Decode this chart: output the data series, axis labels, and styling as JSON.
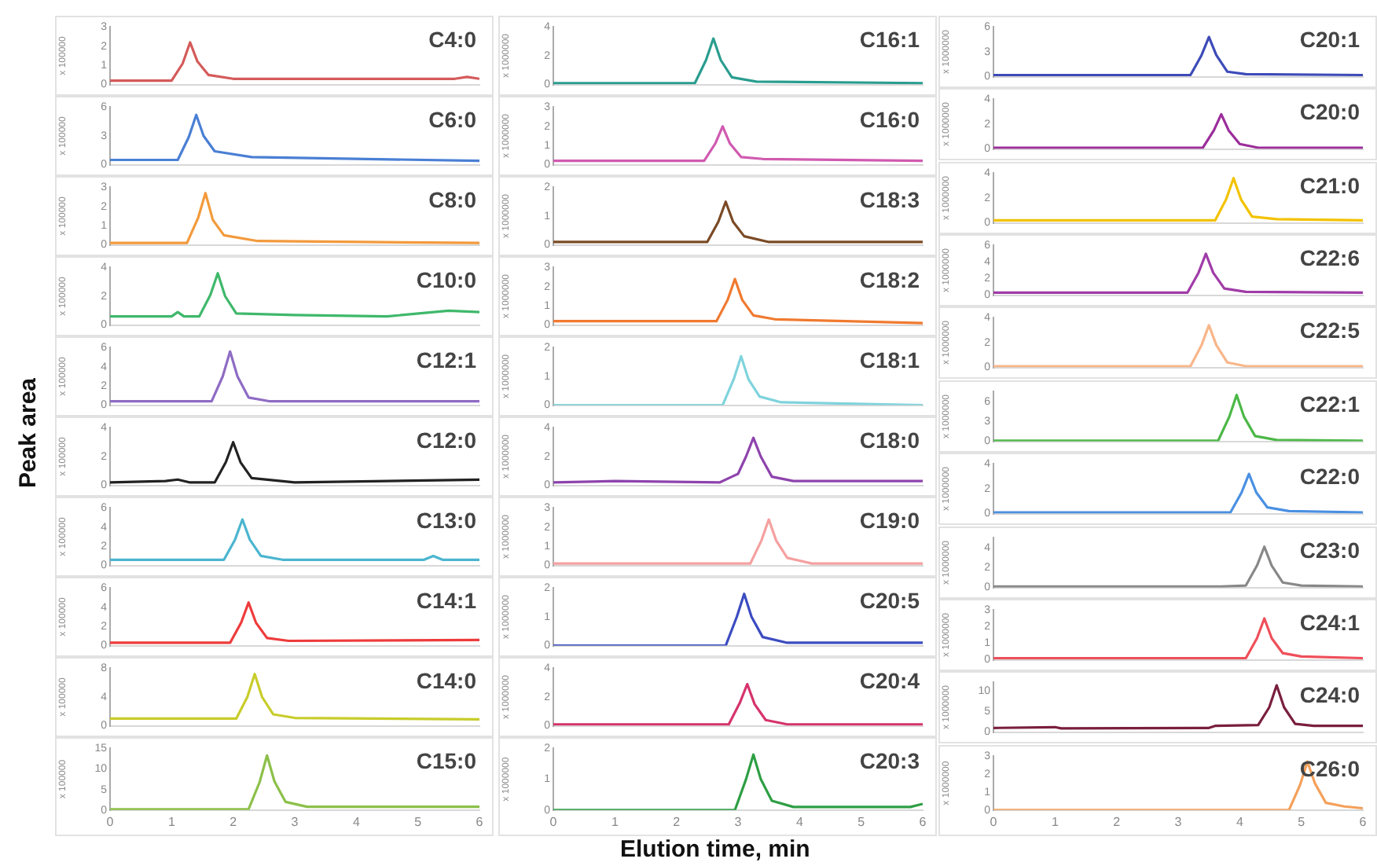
{
  "chart_data": [
    {
      "type": "line",
      "title": "C4:0",
      "ylabel": "x 100000",
      "x": [
        0,
        1.0,
        1.18,
        1.3,
        1.42,
        1.6,
        2.0,
        5.6,
        5.8,
        6
      ],
      "series": [
        {
          "color": "#d45a5a",
          "values": [
            0.2,
            0.2,
            1.1,
            2.2,
            1.2,
            0.5,
            0.3,
            0.3,
            0.4,
            0.3
          ]
        }
      ],
      "xlim": [
        0,
        6
      ],
      "xticks": [
        0,
        1,
        2,
        3,
        4,
        5,
        6
      ],
      "ylim": [
        0,
        3
      ],
      "yticks": [
        0,
        1,
        2,
        3
      ],
      "tick_labels": "y",
      "marker": "none"
    },
    {
      "type": "line",
      "title": "C6:0",
      "ylabel": "x 100000",
      "x": [
        0,
        1.1,
        1.28,
        1.4,
        1.52,
        1.7,
        2.3,
        6
      ],
      "series": [
        {
          "color": "#4a7fd4",
          "values": [
            0.5,
            0.5,
            2.9,
            5.2,
            3.0,
            1.4,
            0.8,
            0.4
          ]
        }
      ],
      "xlim": [
        0,
        6
      ],
      "xticks": [
        0,
        1,
        2,
        3,
        4,
        5,
        6
      ],
      "ylim": [
        0,
        6
      ],
      "yticks": [
        0,
        3,
        6
      ],
      "tick_labels": "y",
      "marker": "none"
    },
    {
      "type": "line",
      "title": "C8:0",
      "ylabel": "x 100000",
      "x": [
        0,
        1.25,
        1.43,
        1.55,
        1.67,
        1.85,
        2.4,
        6
      ],
      "series": [
        {
          "color": "#f39a3c",
          "values": [
            0.1,
            0.1,
            1.4,
            2.7,
            1.3,
            0.5,
            0.2,
            0.1
          ]
        }
      ],
      "xlim": [
        0,
        6
      ],
      "xticks": [
        0,
        1,
        2,
        3,
        4,
        5,
        6
      ],
      "ylim": [
        0,
        3
      ],
      "yticks": [
        0,
        1,
        2,
        3
      ],
      "tick_labels": "y",
      "marker": "none"
    },
    {
      "type": "line",
      "title": "C10:0",
      "ylabel": "x 100000",
      "x": [
        0,
        1.0,
        1.1,
        1.2,
        1.45,
        1.63,
        1.75,
        1.87,
        2.05,
        3.0,
        4.5,
        5.5,
        6
      ],
      "series": [
        {
          "color": "#3fb86b",
          "values": [
            0.6,
            0.6,
            0.9,
            0.6,
            0.6,
            2.1,
            3.6,
            2.0,
            0.8,
            0.7,
            0.6,
            1.0,
            0.9
          ]
        }
      ],
      "xlim": [
        0,
        6
      ],
      "xticks": [
        0,
        1,
        2,
        3,
        4,
        5,
        6
      ],
      "ylim": [
        0,
        4
      ],
      "yticks": [
        0,
        2,
        4
      ],
      "tick_labels": "y",
      "marker": "none"
    },
    {
      "type": "line",
      "title": "C12:1",
      "ylabel": "x 100000",
      "x": [
        0,
        1.65,
        1.83,
        1.95,
        2.07,
        2.25,
        2.6,
        6
      ],
      "series": [
        {
          "color": "#8e6cc4",
          "values": [
            0.4,
            0.4,
            3.0,
            5.6,
            3.0,
            0.8,
            0.4,
            0.4
          ]
        }
      ],
      "xlim": [
        0,
        6
      ],
      "xticks": [
        0,
        1,
        2,
        3,
        4,
        5,
        6
      ],
      "ylim": [
        0,
        6
      ],
      "yticks": [
        0,
        2,
        4,
        6
      ],
      "tick_labels": "y",
      "marker": "none"
    },
    {
      "type": "line",
      "title": "C12:0",
      "ylabel": "x 100000",
      "x": [
        0,
        0.9,
        1.1,
        1.3,
        1.7,
        1.88,
        2.0,
        2.12,
        2.3,
        3.0,
        6
      ],
      "series": [
        {
          "color": "#222222",
          "values": [
            0.2,
            0.3,
            0.4,
            0.2,
            0.2,
            1.6,
            3.0,
            1.6,
            0.5,
            0.2,
            0.4
          ]
        }
      ],
      "xlim": [
        0,
        6
      ],
      "xticks": [
        0,
        1,
        2,
        3,
        4,
        5,
        6
      ],
      "ylim": [
        0,
        4
      ],
      "yticks": [
        0,
        2,
        4
      ],
      "tick_labels": "y",
      "marker": "none"
    },
    {
      "type": "line",
      "title": "C13:0",
      "ylabel": "x 100000",
      "x": [
        0,
        1.85,
        2.03,
        2.15,
        2.27,
        2.45,
        2.8,
        5.1,
        5.25,
        5.4,
        6
      ],
      "series": [
        {
          "color": "#4bb5cf",
          "values": [
            0.6,
            0.6,
            2.7,
            4.8,
            2.7,
            1.0,
            0.6,
            0.6,
            1.0,
            0.6,
            0.6
          ]
        }
      ],
      "xlim": [
        0,
        6
      ],
      "xticks": [
        0,
        1,
        2,
        3,
        4,
        5,
        6
      ],
      "ylim": [
        0,
        6
      ],
      "yticks": [
        0,
        2,
        4,
        6
      ],
      "tick_labels": "y",
      "marker": "none"
    },
    {
      "type": "line",
      "title": "C14:1",
      "ylabel": "x 100000",
      "x": [
        0,
        1.95,
        2.13,
        2.25,
        2.37,
        2.55,
        2.9,
        6
      ],
      "series": [
        {
          "color": "#ee3b3b",
          "values": [
            0.3,
            0.3,
            2.4,
            4.5,
            2.4,
            0.8,
            0.5,
            0.6
          ]
        }
      ],
      "xlim": [
        0,
        6
      ],
      "xticks": [
        0,
        1,
        2,
        3,
        4,
        5,
        6
      ],
      "ylim": [
        0,
        6
      ],
      "yticks": [
        0,
        2,
        4,
        6
      ],
      "tick_labels": "y",
      "marker": "none"
    },
    {
      "type": "line",
      "title": "C14:0",
      "ylabel": "x 100000",
      "x": [
        0,
        2.05,
        2.23,
        2.35,
        2.47,
        2.65,
        3.0,
        6
      ],
      "series": [
        {
          "color": "#c8cc2a",
          "values": [
            1.0,
            1.0,
            4.0,
            7.2,
            4.0,
            1.6,
            1.1,
            0.9
          ]
        }
      ],
      "xlim": [
        0,
        6
      ],
      "xticks": [
        0,
        1,
        2,
        3,
        4,
        5,
        6
      ],
      "ylim": [
        0,
        8
      ],
      "yticks": [
        0,
        4,
        8
      ],
      "tick_labels": "y",
      "marker": "none"
    },
    {
      "type": "line",
      "title": "C15:0",
      "ylabel": "x 100000",
      "x": [
        0,
        2.25,
        2.43,
        2.55,
        2.67,
        2.85,
        3.2,
        6
      ],
      "series": [
        {
          "color": "#8cc04a",
          "values": [
            0.2,
            0.2,
            6.8,
            13.3,
            7.0,
            2.0,
            0.8,
            0.8
          ]
        }
      ],
      "xlim": [
        0,
        6
      ],
      "xticks": [
        0,
        1,
        2,
        3,
        4,
        5,
        6
      ],
      "ylim": [
        0,
        15
      ],
      "yticks": [
        0,
        5,
        10,
        15
      ],
      "marker": "none"
    },
    {
      "type": "line",
      "title": "C16:1",
      "ylabel": "x 1000000",
      "x": [
        0,
        2.3,
        2.48,
        2.6,
        2.72,
        2.9,
        3.3,
        6
      ],
      "series": [
        {
          "color": "#2a9d8f",
          "values": [
            0.1,
            0.1,
            1.7,
            3.2,
            1.7,
            0.5,
            0.2,
            0.1
          ]
        }
      ],
      "xlim": [
        0,
        6
      ],
      "xticks": [
        0,
        1,
        2,
        3,
        4,
        5,
        6
      ],
      "ylim": [
        0,
        4
      ],
      "yticks": [
        0,
        2,
        4
      ],
      "tick_labels": "y",
      "marker": "none"
    },
    {
      "type": "line",
      "title": "C16:0",
      "ylabel": "x 1000000",
      "x": [
        0,
        2.45,
        2.63,
        2.75,
        2.87,
        3.05,
        3.4,
        6
      ],
      "series": [
        {
          "color": "#d05ab0",
          "values": [
            0.2,
            0.2,
            1.1,
            2.0,
            1.1,
            0.4,
            0.3,
            0.2
          ]
        }
      ],
      "xlim": [
        0,
        6
      ],
      "xticks": [
        0,
        1,
        2,
        3,
        4,
        5,
        6
      ],
      "ylim": [
        0,
        3
      ],
      "yticks": [
        0,
        1,
        2,
        3
      ],
      "tick_labels": "y",
      "marker": "none"
    },
    {
      "type": "line",
      "title": "C18:3",
      "ylabel": "x 1000000",
      "x": [
        0,
        2.5,
        2.68,
        2.8,
        2.92,
        3.1,
        3.5,
        6
      ],
      "series": [
        {
          "color": "#7a4a25",
          "values": [
            0.1,
            0.1,
            0.8,
            1.5,
            0.8,
            0.3,
            0.1,
            0.1
          ]
        }
      ],
      "xlim": [
        0,
        6
      ],
      "xticks": [
        0,
        1,
        2,
        3,
        4,
        5,
        6
      ],
      "ylim": [
        0,
        2
      ],
      "yticks": [
        0,
        1,
        2
      ],
      "tick_labels": "y",
      "marker": "none"
    },
    {
      "type": "line",
      "title": "C18:2",
      "ylabel": "x 1000000",
      "x": [
        0,
        2.65,
        2.83,
        2.95,
        3.07,
        3.25,
        3.6,
        6
      ],
      "series": [
        {
          "color": "#f07a30",
          "values": [
            0.2,
            0.2,
            1.3,
            2.4,
            1.3,
            0.5,
            0.3,
            0.1
          ]
        }
      ],
      "xlim": [
        0,
        6
      ],
      "xticks": [
        0,
        1,
        2,
        3,
        4,
        5,
        6
      ],
      "ylim": [
        0,
        3
      ],
      "yticks": [
        0,
        1,
        2,
        3
      ],
      "tick_labels": "y",
      "marker": "none"
    },
    {
      "type": "line",
      "title": "C18:1",
      "ylabel": "x 1000000",
      "x": [
        0,
        2.75,
        2.93,
        3.05,
        3.17,
        3.35,
        3.7,
        6
      ],
      "series": [
        {
          "color": "#7fd3dc",
          "values": [
            0.0,
            0.0,
            0.9,
            1.7,
            0.9,
            0.3,
            0.1,
            0.0
          ]
        }
      ],
      "xlim": [
        0,
        6
      ],
      "xticks": [
        0,
        1,
        2,
        3,
        4,
        5,
        6
      ],
      "ylim": [
        0,
        2
      ],
      "yticks": [
        0,
        1,
        2
      ],
      "tick_labels": "y",
      "marker": "none"
    },
    {
      "type": "line",
      "title": "C18:0",
      "ylabel": "x 1000000",
      "x": [
        0,
        1.0,
        2.7,
        2.9,
        3.0,
        3.13,
        3.25,
        3.37,
        3.55,
        3.9,
        6
      ],
      "series": [
        {
          "color": "#8e44ad",
          "values": [
            0.2,
            0.3,
            0.2,
            0.6,
            0.8,
            2.0,
            3.3,
            2.0,
            0.6,
            0.3,
            0.3
          ]
        }
      ],
      "xlim": [
        0,
        6
      ],
      "xticks": [
        0,
        1,
        2,
        3,
        4,
        5,
        6
      ],
      "ylim": [
        0,
        4
      ],
      "yticks": [
        0,
        2,
        4
      ],
      "tick_labels": "y",
      "marker": "none"
    },
    {
      "type": "line",
      "title": "C19:0",
      "ylabel": "x 1000000",
      "x": [
        0,
        3.2,
        3.38,
        3.5,
        3.62,
        3.8,
        4.2,
        6
      ],
      "series": [
        {
          "color": "#f5a0a0",
          "values": [
            0.1,
            0.1,
            1.3,
            2.4,
            1.3,
            0.4,
            0.1,
            0.1
          ]
        }
      ],
      "xlim": [
        0,
        6
      ],
      "xticks": [
        0,
        1,
        2,
        3,
        4,
        5,
        6
      ],
      "ylim": [
        0,
        3
      ],
      "yticks": [
        0,
        1,
        2,
        3
      ],
      "tick_labels": "y",
      "marker": "none"
    },
    {
      "type": "line",
      "title": "C20:5",
      "ylabel": "x 1000000",
      "x": [
        0,
        2.8,
        2.98,
        3.1,
        3.22,
        3.4,
        3.8,
        6
      ],
      "series": [
        {
          "color": "#3b4cc0",
          "values": [
            0.0,
            0.0,
            1.0,
            1.8,
            1.0,
            0.3,
            0.1,
            0.1
          ]
        }
      ],
      "xlim": [
        0,
        6
      ],
      "xticks": [
        0,
        1,
        2,
        3,
        4,
        5,
        6
      ],
      "ylim": [
        0,
        2
      ],
      "yticks": [
        0,
        1,
        2
      ],
      "tick_labels": "y",
      "marker": "none"
    },
    {
      "type": "line",
      "title": "C20:4",
      "ylabel": "x 1000000",
      "x": [
        0,
        2.85,
        3.03,
        3.15,
        3.27,
        3.45,
        3.8,
        6
      ],
      "series": [
        {
          "color": "#d6336c",
          "values": [
            0.1,
            0.1,
            1.6,
            2.9,
            1.5,
            0.4,
            0.1,
            0.1
          ]
        }
      ],
      "xlim": [
        0,
        6
      ],
      "xticks": [
        0,
        1,
        2,
        3,
        4,
        5,
        6
      ],
      "ylim": [
        0,
        4
      ],
      "yticks": [
        0,
        2,
        4
      ],
      "tick_labels": "y",
      "marker": "none"
    },
    {
      "type": "line",
      "title": "C20:3",
      "ylabel": "x 1000000",
      "x": [
        0,
        2.95,
        3.13,
        3.25,
        3.37,
        3.55,
        3.9,
        5.8,
        6
      ],
      "series": [
        {
          "color": "#2e9e44",
          "values": [
            0.0,
            0.0,
            1.0,
            1.8,
            1.0,
            0.3,
            0.1,
            0.1,
            0.2
          ]
        }
      ],
      "xlim": [
        0,
        6
      ],
      "xticks": [
        0,
        1,
        2,
        3,
        4,
        5,
        6
      ],
      "ylim": [
        0,
        2
      ],
      "yticks": [
        0,
        1,
        2
      ],
      "marker": "none"
    },
    {
      "type": "line",
      "title": "C20:1",
      "ylabel": "x 1000000",
      "x": [
        0,
        3.2,
        3.38,
        3.5,
        3.62,
        3.8,
        4.1,
        6
      ],
      "series": [
        {
          "color": "#3d4bb8",
          "values": [
            0.2,
            0.2,
            2.6,
            4.8,
            2.6,
            0.6,
            0.3,
            0.2
          ]
        }
      ],
      "xlim": [
        0,
        6
      ],
      "xticks": [
        0,
        1,
        2,
        3,
        4,
        5,
        6
      ],
      "ylim": [
        0,
        6
      ],
      "yticks": [
        0,
        3,
        6
      ],
      "tick_labels": "y",
      "marker": "none"
    },
    {
      "type": "line",
      "title": "C20:0",
      "ylabel": "x 1000000",
      "x": [
        0,
        3.4,
        3.58,
        3.7,
        3.82,
        4.0,
        4.3,
        6
      ],
      "series": [
        {
          "color": "#9b2d9b",
          "values": [
            0.1,
            0.1,
            1.5,
            2.8,
            1.5,
            0.4,
            0.1,
            0.1
          ]
        }
      ],
      "xlim": [
        0,
        6
      ],
      "xticks": [
        0,
        1,
        2,
        3,
        4,
        5,
        6
      ],
      "ylim": [
        0,
        4
      ],
      "yticks": [
        0,
        2,
        4
      ],
      "tick_labels": "y",
      "marker": "none"
    },
    {
      "type": "line",
      "title": "C21:0",
      "ylabel": "x 1000000",
      "x": [
        0,
        3.6,
        3.78,
        3.9,
        4.02,
        4.2,
        4.6,
        6
      ],
      "series": [
        {
          "color": "#f2c200",
          "values": [
            0.2,
            0.2,
            1.9,
            3.6,
            1.9,
            0.5,
            0.3,
            0.2
          ]
        }
      ],
      "xlim": [
        0,
        6
      ],
      "xticks": [
        0,
        1,
        2,
        3,
        4,
        5,
        6
      ],
      "ylim": [
        0,
        4
      ],
      "yticks": [
        0,
        2,
        4
      ],
      "tick_labels": "y",
      "marker": "none"
    },
    {
      "type": "line",
      "title": "C22:6",
      "ylabel": "x 1000000",
      "x": [
        0,
        3.15,
        3.33,
        3.45,
        3.57,
        3.75,
        4.1,
        6
      ],
      "series": [
        {
          "color": "#a03ca8",
          "values": [
            0.3,
            0.3,
            2.7,
            5.0,
            2.7,
            0.8,
            0.4,
            0.3
          ]
        }
      ],
      "xlim": [
        0,
        6
      ],
      "xticks": [
        0,
        1,
        2,
        3,
        4,
        5,
        6
      ],
      "ylim": [
        0,
        6
      ],
      "yticks": [
        0,
        2,
        4,
        6
      ],
      "tick_labels": "y",
      "marker": "none"
    },
    {
      "type": "line",
      "title": "C22:5",
      "ylabel": "x 1000000",
      "x": [
        0,
        3.2,
        3.38,
        3.5,
        3.62,
        3.8,
        4.1,
        6
      ],
      "series": [
        {
          "color": "#f8b68a",
          "values": [
            0.1,
            0.1,
            1.8,
            3.4,
            1.8,
            0.4,
            0.1,
            0.1
          ]
        }
      ],
      "xlim": [
        0,
        6
      ],
      "xticks": [
        0,
        1,
        2,
        3,
        4,
        5,
        6
      ],
      "ylim": [
        0,
        4
      ],
      "yticks": [
        0,
        2,
        4
      ],
      "tick_labels": "y",
      "marker": "none"
    },
    {
      "type": "line",
      "title": "C22:1",
      "ylabel": "x 1000000",
      "x": [
        0,
        3.65,
        3.83,
        3.95,
        4.07,
        4.25,
        4.6,
        6
      ],
      "series": [
        {
          "color": "#4cb848",
          "values": [
            0.1,
            0.1,
            3.7,
            7.0,
            3.7,
            0.8,
            0.2,
            0.1
          ]
        }
      ],
      "xlim": [
        0,
        6
      ],
      "xticks": [
        0,
        1,
        2,
        3,
        4,
        5,
        6
      ],
      "ylim": [
        0,
        7.5
      ],
      "yticks": [
        0,
        3,
        6
      ],
      "tick_labels": "y",
      "marker": "none"
    },
    {
      "type": "line",
      "title": "C22:0",
      "ylabel": "x 1000000",
      "x": [
        0,
        3.85,
        4.03,
        4.15,
        4.27,
        4.45,
        4.8,
        6
      ],
      "series": [
        {
          "color": "#4a90e2",
          "values": [
            0.1,
            0.1,
            1.7,
            3.2,
            1.7,
            0.5,
            0.2,
            0.1
          ]
        }
      ],
      "xlim": [
        0,
        6
      ],
      "xticks": [
        0,
        1,
        2,
        3,
        4,
        5,
        6
      ],
      "ylim": [
        0,
        4
      ],
      "yticks": [
        0,
        2,
        4
      ],
      "tick_labels": "y",
      "marker": "none"
    },
    {
      "type": "line",
      "title": "C23:0",
      "ylabel": "x 1000000",
      "x": [
        0,
        3.7,
        4.1,
        4.28,
        4.4,
        4.52,
        4.7,
        5.0,
        6
      ],
      "series": [
        {
          "color": "#888888",
          "values": [
            0.1,
            0.1,
            0.2,
            2.2,
            4.1,
            2.2,
            0.5,
            0.2,
            0.1
          ]
        }
      ],
      "xlim": [
        0,
        6
      ],
      "xticks": [
        0,
        1,
        2,
        3,
        4,
        5,
        6
      ],
      "ylim": [
        0,
        5
      ],
      "yticks": [
        0,
        2,
        4
      ],
      "tick_labels": "y",
      "marker": "none"
    },
    {
      "type": "line",
      "title": "C24:1",
      "ylabel": "x 1000000",
      "x": [
        0,
        4.1,
        4.28,
        4.4,
        4.52,
        4.7,
        5.0,
        6
      ],
      "series": [
        {
          "color": "#ef4f5a",
          "values": [
            0.1,
            0.1,
            1.3,
            2.5,
            1.3,
            0.4,
            0.2,
            0.1
          ]
        }
      ],
      "xlim": [
        0,
        6
      ],
      "xticks": [
        0,
        1,
        2,
        3,
        4,
        5,
        6
      ],
      "ylim": [
        0,
        3
      ],
      "yticks": [
        0,
        1,
        2,
        3
      ],
      "tick_labels": "y",
      "marker": "none"
    },
    {
      "type": "line",
      "title": "C24:0",
      "ylabel": "x 1000000",
      "x": [
        0,
        1.0,
        1.1,
        3.5,
        3.6,
        4.3,
        4.48,
        4.6,
        4.72,
        4.9,
        5.2,
        6
      ],
      "series": [
        {
          "color": "#7a1f3d",
          "values": [
            1.0,
            1.2,
            0.9,
            1.0,
            1.5,
            1.7,
            6.0,
            11.3,
            6.0,
            2.0,
            1.5,
            1.5
          ]
        }
      ],
      "xlim": [
        0,
        6
      ],
      "xticks": [
        0,
        1,
        2,
        3,
        4,
        5,
        6
      ],
      "ylim": [
        0,
        12
      ],
      "yticks": [
        0,
        5,
        10
      ],
      "tick_labels": "y",
      "marker": "none"
    },
    {
      "type": "line",
      "title": "C26:0",
      "ylabel": "x 1000000",
      "x": [
        0,
        4.8,
        4.98,
        5.1,
        5.22,
        5.4,
        5.7,
        6
      ],
      "series": [
        {
          "color": "#f5a05a",
          "values": [
            0.0,
            0.0,
            1.4,
            2.7,
            1.5,
            0.4,
            0.2,
            0.1
          ]
        }
      ],
      "xlim": [
        0,
        6
      ],
      "xticks": [
        0,
        1,
        2,
        3,
        4,
        5,
        6
      ],
      "ylim": [
        0,
        3
      ],
      "yticks": [
        0,
        1,
        2,
        3
      ],
      "marker": "none"
    },
    {
      "type": "other",
      "xlabel": "Elution time, min",
      "ylabel": "Peak area"
    }
  ]
}
